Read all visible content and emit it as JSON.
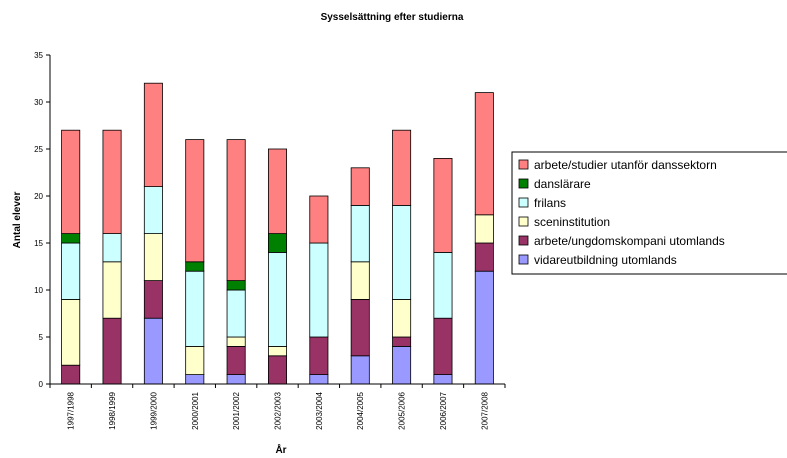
{
  "chart_data": {
    "type": "bar",
    "stacked": true,
    "title": "Sysselsättning efter studierna",
    "xlabel": "År",
    "ylabel": "Antal elever",
    "ylim": [
      0,
      35
    ],
    "yticks": [
      0,
      5,
      10,
      15,
      20,
      25,
      30,
      35
    ],
    "grid": false,
    "legend_position": "right",
    "categories": [
      "1997/1998",
      "1998/1999",
      "1999/2000",
      "2000/2001",
      "2001/2002",
      "2002/2003",
      "2003/2004",
      "2004/2005",
      "2005/2006",
      "2006/2007",
      "2007/2008"
    ],
    "series": [
      {
        "name": "vidareutbildning utomlands",
        "color": "#9999ff",
        "values": [
          0,
          0,
          7,
          1,
          1,
          0,
          1,
          3,
          4,
          1,
          12
        ]
      },
      {
        "name": "arbete/ungdomskompani utomlands",
        "color": "#993366",
        "values": [
          2,
          7,
          4,
          0,
          3,
          3,
          4,
          6,
          1,
          6,
          3
        ]
      },
      {
        "name": "sceninstitution",
        "color": "#ffffcc",
        "values": [
          7,
          6,
          5,
          3,
          1,
          1,
          0,
          4,
          4,
          0,
          3
        ]
      },
      {
        "name": "frilans",
        "color": "#ccffff",
        "values": [
          6,
          3,
          5,
          8,
          5,
          10,
          10,
          6,
          10,
          7,
          0
        ]
      },
      {
        "name": "danslärare",
        "color": "#008000",
        "values": [
          1,
          0,
          0,
          1,
          1,
          2,
          0,
          0,
          0,
          0,
          0
        ]
      },
      {
        "name": "arbete/studier utanför danssektorn",
        "color": "#ff8080",
        "values": [
          11,
          11,
          11,
          13,
          15,
          9,
          5,
          4,
          8,
          10,
          13
        ]
      }
    ]
  }
}
